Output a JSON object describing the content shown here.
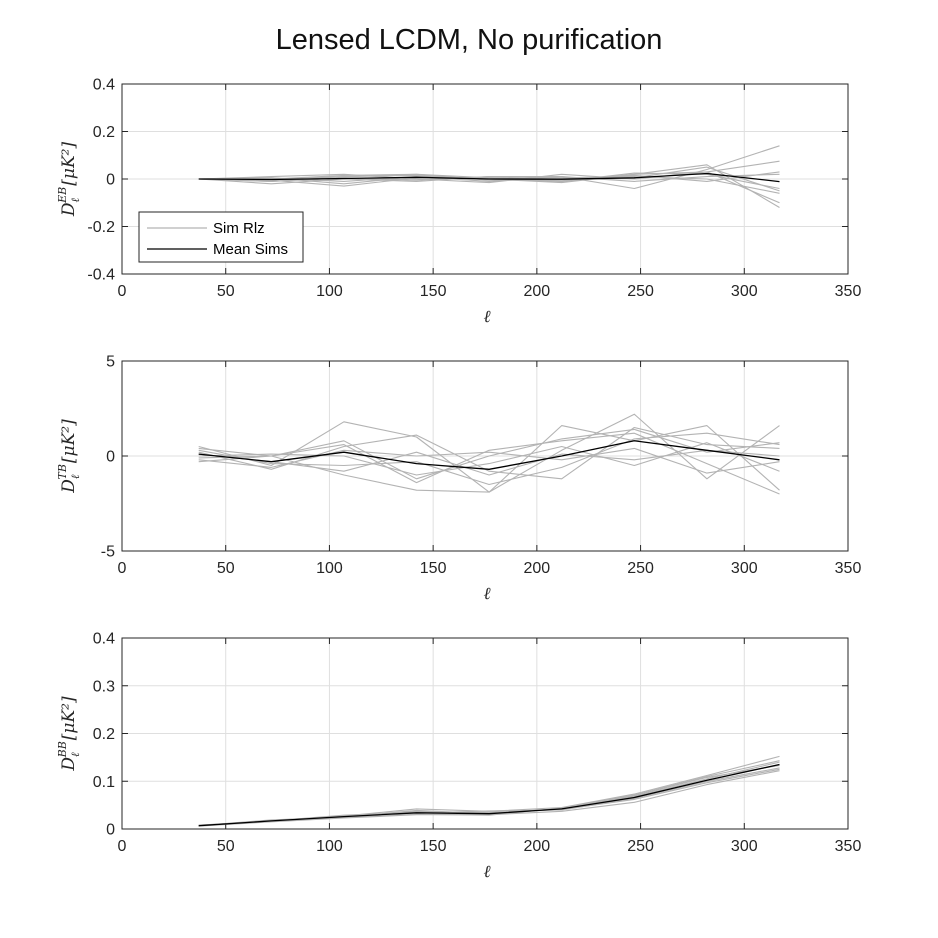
{
  "figure": {
    "title": "Lensed LCDM, No purification"
  },
  "legend": {
    "placement": "left",
    "entries": [
      {
        "name": "Sim Rlz",
        "color": "#b3b3b3"
      },
      {
        "name": "Mean Sims",
        "color": "#000000"
      }
    ]
  },
  "chart_data": [
    {
      "type": "line",
      "title": "",
      "xlabel": "ℓ",
      "ylabel": "D_ℓ^{EB} [μK²]",
      "ylabel_parts": {
        "base": "D",
        "sub": "ℓ",
        "sup": "EB",
        "unit": "[μK²]"
      },
      "xlim": [
        0,
        350
      ],
      "ylim": [
        -0.4,
        0.4
      ],
      "xticks": [
        "0",
        "50",
        "100",
        "150",
        "200",
        "250",
        "300",
        "350"
      ],
      "yticks": [
        "-0.4",
        "-0.2",
        "0",
        "0.2",
        "0.4"
      ],
      "grid": true,
      "x": [
        37,
        72,
        107,
        142,
        177,
        212,
        247,
        282,
        317
      ],
      "series": [
        {
          "role": "sim",
          "values": [
            0.0,
            -0.01,
            0.01,
            0.02,
            0.005,
            -0.01,
            0.02,
            0.06,
            -0.12
          ]
        },
        {
          "role": "sim",
          "values": [
            0.0,
            0.005,
            -0.02,
            0.01,
            -0.01,
            0.01,
            -0.04,
            0.04,
            0.14
          ]
        },
        {
          "role": "sim",
          "values": [
            0.0,
            -0.02,
            0.0,
            -0.01,
            0.01,
            0.005,
            0.01,
            0.0,
            -0.06
          ]
        },
        {
          "role": "sim",
          "values": [
            0.0,
            0.01,
            0.02,
            0.0,
            -0.015,
            0.02,
            0.0,
            0.03,
            0.075
          ]
        },
        {
          "role": "sim",
          "values": [
            0.0,
            0.0,
            0.01,
            0.015,
            0.0,
            -0.01,
            0.025,
            0.02,
            -0.04
          ]
        },
        {
          "role": "sim",
          "values": [
            0.0,
            -0.005,
            -0.03,
            0.005,
            0.005,
            0.0,
            0.015,
            -0.01,
            0.03
          ]
        },
        {
          "role": "sim",
          "values": [
            0.0,
            0.0,
            0.015,
            0.02,
            -0.005,
            -0.005,
            0.005,
            0.05,
            -0.05
          ]
        },
        {
          "role": "sim",
          "values": [
            0.0,
            -0.01,
            0.005,
            -0.005,
            0.01,
            0.01,
            -0.01,
            0.01,
            0.02
          ]
        },
        {
          "role": "sim",
          "values": [
            0.0,
            0.005,
            -0.01,
            0.01,
            0.0,
            -0.015,
            0.02,
            0.03,
            -0.1
          ]
        },
        {
          "role": "mean",
          "values": [
            0.0,
            -0.002,
            0.002,
            0.007,
            0.0,
            -0.001,
            0.005,
            0.023,
            -0.011
          ]
        }
      ]
    },
    {
      "type": "line",
      "title": "",
      "xlabel": "ℓ",
      "ylabel": "D_ℓ^{TB} [μK²]",
      "ylabel_parts": {
        "base": "D",
        "sub": "ℓ",
        "sup": "TB",
        "unit": "[μK²]"
      },
      "xlim": [
        0,
        350
      ],
      "ylim": [
        -5,
        5
      ],
      "xticks": [
        "0",
        "50",
        "100",
        "150",
        "200",
        "250",
        "300",
        "350"
      ],
      "yticks": [
        "-5",
        "0",
        "5"
      ],
      "grid": true,
      "x": [
        37,
        72,
        107,
        142,
        177,
        212,
        247,
        282,
        317
      ],
      "series": [
        {
          "role": "sim",
          "values": [
            0.5,
            -0.5,
            1.8,
            1.0,
            -1.9,
            0.3,
            2.2,
            -1.2,
            1.6
          ]
        },
        {
          "role": "sim",
          "values": [
            -0.3,
            0.0,
            -1.0,
            -1.8,
            -1.9,
            1.6,
            0.8,
            1.6,
            -1.8
          ]
        },
        {
          "role": "sim",
          "values": [
            0.2,
            -0.7,
            0.5,
            1.1,
            -0.8,
            -1.2,
            1.5,
            0.6,
            0.4
          ]
        },
        {
          "role": "sim",
          "values": [
            -0.1,
            0.0,
            0.6,
            -1.4,
            0.3,
            0.8,
            1.2,
            -0.4,
            -2.0
          ]
        },
        {
          "role": "sim",
          "values": [
            0.3,
            -0.4,
            -0.5,
            -0.3,
            -1.5,
            -0.6,
            0.9,
            1.2,
            0.6
          ]
        },
        {
          "role": "sim",
          "values": [
            0.0,
            0.1,
            0.0,
            -1.0,
            -0.4,
            0.5,
            -0.5,
            0.7,
            -0.8
          ]
        },
        {
          "role": "sim",
          "values": [
            -0.2,
            -0.6,
            0.3,
            0.0,
            0.2,
            -0.2,
            0.4,
            -0.9,
            -0.3
          ]
        },
        {
          "role": "sim",
          "values": [
            0.4,
            0.0,
            0.8,
            -1.2,
            0.0,
            0.9,
            1.4,
            0.2,
            0.7
          ]
        },
        {
          "role": "sim",
          "values": [
            0.1,
            -0.3,
            -0.8,
            0.2,
            -1.0,
            0.1,
            -0.2,
            0.3,
            0.0
          ]
        },
        {
          "role": "mean",
          "values": [
            0.1,
            -0.3,
            0.2,
            -0.4,
            -0.7,
            0.0,
            0.8,
            0.3,
            -0.2
          ]
        }
      ]
    },
    {
      "type": "line",
      "title": "",
      "xlabel": "ℓ",
      "ylabel": "D_ℓ^{BB} [μK²]",
      "ylabel_parts": {
        "base": "D",
        "sub": "ℓ",
        "sup": "BB",
        "unit": "[μK²]"
      },
      "xlim": [
        0,
        350
      ],
      "ylim": [
        0,
        0.4
      ],
      "xticks": [
        "0",
        "50",
        "100",
        "150",
        "200",
        "250",
        "300",
        "350"
      ],
      "yticks": [
        "0",
        "0.1",
        "0.2",
        "0.3",
        "0.4"
      ],
      "grid": true,
      "x": [
        37,
        72,
        107,
        142,
        177,
        212,
        247,
        282,
        317
      ],
      "series": [
        {
          "role": "sim",
          "values": [
            0.008,
            0.017,
            0.027,
            0.042,
            0.037,
            0.045,
            0.073,
            0.112,
            0.152
          ]
        },
        {
          "role": "sim",
          "values": [
            0.006,
            0.015,
            0.023,
            0.03,
            0.03,
            0.037,
            0.056,
            0.093,
            0.122
          ]
        },
        {
          "role": "sim",
          "values": [
            0.007,
            0.018,
            0.026,
            0.037,
            0.033,
            0.042,
            0.068,
            0.105,
            0.14
          ]
        },
        {
          "role": "sim",
          "values": [
            0.008,
            0.016,
            0.028,
            0.033,
            0.038,
            0.04,
            0.064,
            0.1,
            0.128
          ]
        },
        {
          "role": "sim",
          "values": [
            0.007,
            0.019,
            0.025,
            0.039,
            0.032,
            0.043,
            0.07,
            0.108,
            0.133
          ]
        },
        {
          "role": "sim",
          "values": [
            0.006,
            0.017,
            0.029,
            0.035,
            0.035,
            0.041,
            0.062,
            0.097,
            0.125
          ]
        },
        {
          "role": "sim",
          "values": [
            0.007,
            0.016,
            0.024,
            0.031,
            0.029,
            0.044,
            0.071,
            0.11,
            0.143
          ]
        },
        {
          "role": "mean",
          "values": [
            0.007,
            0.017,
            0.026,
            0.034,
            0.032,
            0.042,
            0.066,
            0.102,
            0.135
          ]
        }
      ]
    }
  ]
}
